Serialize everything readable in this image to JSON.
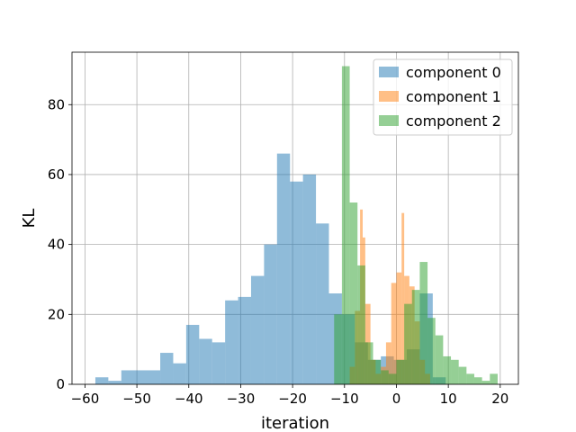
{
  "chart_data": {
    "type": "bar",
    "title": "",
    "xlabel": "iteration",
    "ylabel": "KL",
    "xlim": [
      -62.5,
      23.5
    ],
    "ylim": [
      0,
      95
    ],
    "grid": true,
    "legend_position": "top-right",
    "xticks": [
      -60,
      -50,
      -40,
      -30,
      -20,
      -10,
      0,
      10,
      20
    ],
    "yticks": [
      0,
      20,
      40,
      60,
      80
    ],
    "series": [
      {
        "name": "component 0",
        "color": "#1f77b4",
        "opacity": 0.5,
        "bins": [
          {
            "x0": -58.0,
            "x1": -55.5,
            "y": 2
          },
          {
            "x0": -55.5,
            "x1": -53.0,
            "y": 1
          },
          {
            "x0": -53.0,
            "x1": -45.5,
            "y": 4
          },
          {
            "x0": -45.5,
            "x1": -43.0,
            "y": 9
          },
          {
            "x0": -43.0,
            "x1": -40.5,
            "y": 6
          },
          {
            "x0": -40.5,
            "x1": -38.0,
            "y": 17
          },
          {
            "x0": -38.0,
            "x1": -35.5,
            "y": 13
          },
          {
            "x0": -35.5,
            "x1": -33.0,
            "y": 12
          },
          {
            "x0": -33.0,
            "x1": -30.5,
            "y": 24
          },
          {
            "x0": -30.5,
            "x1": -28.0,
            "y": 25
          },
          {
            "x0": -28.0,
            "x1": -25.5,
            "y": 31
          },
          {
            "x0": -25.5,
            "x1": -23.0,
            "y": 40
          },
          {
            "x0": -23.0,
            "x1": -20.5,
            "y": 66
          },
          {
            "x0": -20.5,
            "x1": -18.0,
            "y": 58
          },
          {
            "x0": -18.0,
            "x1": -15.5,
            "y": 60
          },
          {
            "x0": -15.5,
            "x1": -13.0,
            "y": 46
          },
          {
            "x0": -13.0,
            "x1": -10.5,
            "y": 26
          },
          {
            "x0": -10.5,
            "x1": -8.0,
            "y": 20
          },
          {
            "x0": -8.0,
            "x1": -5.5,
            "y": 12
          },
          {
            "x0": -5.5,
            "x1": -3.0,
            "y": 7
          },
          {
            "x0": -3.0,
            "x1": -0.5,
            "y": 8
          },
          {
            "x0": -0.5,
            "x1": 2.0,
            "y": 7
          },
          {
            "x0": 2.0,
            "x1": 4.5,
            "y": 10
          },
          {
            "x0": 4.5,
            "x1": 7.0,
            "y": 26
          },
          {
            "x0": 7.0,
            "x1": 9.5,
            "y": 2
          }
        ]
      },
      {
        "name": "component 1",
        "color": "#ff7f0e",
        "opacity": 0.5,
        "bins": [
          {
            "x0": -9.0,
            "x1": -8.0,
            "y": 5
          },
          {
            "x0": -8.0,
            "x1": -7.0,
            "y": 21
          },
          {
            "x0": -7.0,
            "x1": -6.5,
            "y": 50
          },
          {
            "x0": -6.5,
            "x1": -6.0,
            "y": 42
          },
          {
            "x0": -6.0,
            "x1": -5.0,
            "y": 23
          },
          {
            "x0": -5.0,
            "x1": -4.0,
            "y": 7
          },
          {
            "x0": -4.0,
            "x1": -3.0,
            "y": 3
          },
          {
            "x0": -3.0,
            "x1": -2.0,
            "y": 5
          },
          {
            "x0": -2.0,
            "x1": -1.0,
            "y": 12
          },
          {
            "x0": -1.0,
            "x1": 0.0,
            "y": 29
          },
          {
            "x0": 0.0,
            "x1": 1.0,
            "y": 32
          },
          {
            "x0": 1.0,
            "x1": 1.5,
            "y": 49
          },
          {
            "x0": 1.5,
            "x1": 2.5,
            "y": 31
          },
          {
            "x0": 2.5,
            "x1": 3.5,
            "y": 28
          },
          {
            "x0": 3.5,
            "x1": 4.5,
            "y": 18
          },
          {
            "x0": 4.5,
            "x1": 5.5,
            "y": 7
          },
          {
            "x0": 5.5,
            "x1": 6.5,
            "y": 3
          }
        ]
      },
      {
        "name": "component 2",
        "color": "#2ca02c",
        "opacity": 0.5,
        "bins": [
          {
            "x0": -12.0,
            "x1": -10.5,
            "y": 20
          },
          {
            "x0": -10.5,
            "x1": -9.0,
            "y": 91
          },
          {
            "x0": -9.0,
            "x1": -7.5,
            "y": 52
          },
          {
            "x0": -7.5,
            "x1": -6.0,
            "y": 34
          },
          {
            "x0": -6.0,
            "x1": -4.5,
            "y": 12
          },
          {
            "x0": -4.5,
            "x1": -3.0,
            "y": 7
          },
          {
            "x0": -3.0,
            "x1": -1.5,
            "y": 4
          },
          {
            "x0": -1.5,
            "x1": 0.0,
            "y": 3
          },
          {
            "x0": 0.0,
            "x1": 1.5,
            "y": 7
          },
          {
            "x0": 1.5,
            "x1": 3.0,
            "y": 23
          },
          {
            "x0": 3.0,
            "x1": 4.5,
            "y": 27
          },
          {
            "x0": 4.5,
            "x1": 6.0,
            "y": 35
          },
          {
            "x0": 6.0,
            "x1": 7.5,
            "y": 19
          },
          {
            "x0": 7.5,
            "x1": 9.0,
            "y": 14
          },
          {
            "x0": 9.0,
            "x1": 10.5,
            "y": 8
          },
          {
            "x0": 10.5,
            "x1": 12.0,
            "y": 7
          },
          {
            "x0": 12.0,
            "x1": 13.5,
            "y": 5
          },
          {
            "x0": 13.5,
            "x1": 15.0,
            "y": 3
          },
          {
            "x0": 15.0,
            "x1": 16.5,
            "y": 2
          },
          {
            "x0": 16.5,
            "x1": 18.0,
            "y": 1
          },
          {
            "x0": 18.0,
            "x1": 19.5,
            "y": 3
          }
        ]
      }
    ]
  }
}
